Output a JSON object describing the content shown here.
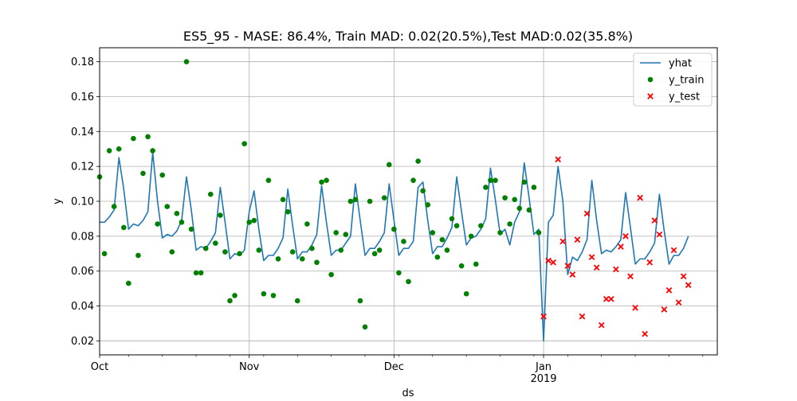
{
  "chart_data": {
    "type": "line",
    "title": "ES5_95 - MASE: 86.4%, Train MAD: 0.02(20.5%),Test MAD:0.02(35.8%)",
    "xlabel": "ds",
    "ylabel": "y",
    "xlim": [
      "2018-10-01",
      "2019-02-06"
    ],
    "ylim": [
      0.012,
      0.188
    ],
    "grid": true,
    "legend_position": "top-right",
    "x_ticks": [
      {
        "date": "2018-10-01",
        "label": "Oct",
        "sublabel": ""
      },
      {
        "date": "2018-11-01",
        "label": "Nov",
        "sublabel": ""
      },
      {
        "date": "2018-12-01",
        "label": "Dec",
        "sublabel": ""
      },
      {
        "date": "2019-01-01",
        "label": "Jan",
        "sublabel": "2019"
      }
    ],
    "y_ticks": [
      "0.02",
      "0.04",
      "0.06",
      "0.08",
      "0.10",
      "0.12",
      "0.14",
      "0.16",
      "0.18"
    ],
    "colors": {
      "yhat": "#1f77b4",
      "y_train": "#008000",
      "y_test": "#ff0000"
    },
    "series": [
      {
        "name": "yhat",
        "kind": "line",
        "points": [
          [
            "2018-10-01",
            0.088
          ],
          [
            "2018-10-02",
            0.088
          ],
          [
            "2018-10-03",
            0.091
          ],
          [
            "2018-10-04",
            0.095
          ],
          [
            "2018-10-05",
            0.125
          ],
          [
            "2018-10-06",
            0.107
          ],
          [
            "2018-10-07",
            0.084
          ],
          [
            "2018-10-08",
            0.087
          ],
          [
            "2018-10-09",
            0.086
          ],
          [
            "2018-10-10",
            0.089
          ],
          [
            "2018-10-11",
            0.094
          ],
          [
            "2018-10-12",
            0.128
          ],
          [
            "2018-10-13",
            0.1
          ],
          [
            "2018-10-14",
            0.079
          ],
          [
            "2018-10-15",
            0.081
          ],
          [
            "2018-10-16",
            0.08
          ],
          [
            "2018-10-17",
            0.083
          ],
          [
            "2018-10-18",
            0.089
          ],
          [
            "2018-10-19",
            0.114
          ],
          [
            "2018-10-20",
            0.095
          ],
          [
            "2018-10-21",
            0.072
          ],
          [
            "2018-10-22",
            0.074
          ],
          [
            "2018-10-23",
            0.073
          ],
          [
            "2018-10-24",
            0.077
          ],
          [
            "2018-10-25",
            0.082
          ],
          [
            "2018-10-26",
            0.108
          ],
          [
            "2018-10-27",
            0.088
          ],
          [
            "2018-10-28",
            0.067
          ],
          [
            "2018-10-29",
            0.07
          ],
          [
            "2018-10-30",
            0.069
          ],
          [
            "2018-10-31",
            0.072
          ],
          [
            "2018-11-01",
            0.094
          ],
          [
            "2018-11-02",
            0.106
          ],
          [
            "2018-11-03",
            0.084
          ],
          [
            "2018-11-04",
            0.066
          ],
          [
            "2018-11-05",
            0.069
          ],
          [
            "2018-11-06",
            0.069
          ],
          [
            "2018-11-07",
            0.073
          ],
          [
            "2018-11-08",
            0.079
          ],
          [
            "2018-11-09",
            0.107
          ],
          [
            "2018-11-10",
            0.086
          ],
          [
            "2018-11-11",
            0.067
          ],
          [
            "2018-11-12",
            0.071
          ],
          [
            "2018-11-13",
            0.071
          ],
          [
            "2018-11-14",
            0.075
          ],
          [
            "2018-11-15",
            0.081
          ],
          [
            "2018-11-16",
            0.109
          ],
          [
            "2018-11-17",
            0.088
          ],
          [
            "2018-11-18",
            0.069
          ],
          [
            "2018-11-19",
            0.072
          ],
          [
            "2018-11-20",
            0.072
          ],
          [
            "2018-11-21",
            0.076
          ],
          [
            "2018-11-22",
            0.08
          ],
          [
            "2018-11-23",
            0.11
          ],
          [
            "2018-11-24",
            0.089
          ],
          [
            "2018-11-25",
            0.069
          ],
          [
            "2018-11-26",
            0.073
          ],
          [
            "2018-11-27",
            0.073
          ],
          [
            "2018-11-28",
            0.077
          ],
          [
            "2018-11-29",
            0.082
          ],
          [
            "2018-11-30",
            0.11
          ],
          [
            "2018-12-01",
            0.089
          ],
          [
            "2018-12-02",
            0.069
          ],
          [
            "2018-12-03",
            0.073
          ],
          [
            "2018-12-04",
            0.073
          ],
          [
            "2018-12-05",
            0.077
          ],
          [
            "2018-12-06",
            0.108
          ],
          [
            "2018-12-07",
            0.111
          ],
          [
            "2018-12-08",
            0.089
          ],
          [
            "2018-12-09",
            0.07
          ],
          [
            "2018-12-10",
            0.074
          ],
          [
            "2018-12-11",
            0.074
          ],
          [
            "2018-12-12",
            0.079
          ],
          [
            "2018-12-13",
            0.085
          ],
          [
            "2018-12-14",
            0.114
          ],
          [
            "2018-12-15",
            0.094
          ],
          [
            "2018-12-16",
            0.075
          ],
          [
            "2018-12-17",
            0.079
          ],
          [
            "2018-12-18",
            0.08
          ],
          [
            "2018-12-19",
            0.084
          ],
          [
            "2018-12-20",
            0.09
          ],
          [
            "2018-12-21",
            0.119
          ],
          [
            "2018-12-22",
            0.101
          ],
          [
            "2018-12-23",
            0.081
          ],
          [
            "2018-12-24",
            0.084
          ],
          [
            "2018-12-25",
            0.075
          ],
          [
            "2018-12-26",
            0.088
          ],
          [
            "2018-12-27",
            0.094
          ],
          [
            "2018-12-28",
            0.122
          ],
          [
            "2018-12-29",
            0.102
          ],
          [
            "2018-12-30",
            0.081
          ],
          [
            "2018-12-31",
            0.084
          ],
          [
            "2019-01-01",
            0.02
          ],
          [
            "2019-01-02",
            0.088
          ],
          [
            "2019-01-03",
            0.092
          ],
          [
            "2019-01-04",
            0.12
          ],
          [
            "2019-01-05",
            0.1
          ],
          [
            "2019-01-06",
            0.058
          ],
          [
            "2019-01-07",
            0.068
          ],
          [
            "2019-01-08",
            0.066
          ],
          [
            "2019-01-09",
            0.071
          ],
          [
            "2019-01-10",
            0.078
          ],
          [
            "2019-01-11",
            0.112
          ],
          [
            "2019-01-12",
            0.089
          ],
          [
            "2019-01-13",
            0.07
          ],
          [
            "2019-01-14",
            0.072
          ],
          [
            "2019-01-15",
            0.071
          ],
          [
            "2019-01-16",
            0.074
          ],
          [
            "2019-01-17",
            0.078
          ],
          [
            "2019-01-18",
            0.105
          ],
          [
            "2019-01-19",
            0.085
          ],
          [
            "2019-01-20",
            0.064
          ],
          [
            "2019-01-21",
            0.067
          ],
          [
            "2019-01-22",
            0.067
          ],
          [
            "2019-01-23",
            0.071
          ],
          [
            "2019-01-24",
            0.076
          ],
          [
            "2019-01-25",
            0.104
          ],
          [
            "2019-01-26",
            0.083
          ],
          [
            "2019-01-27",
            0.064
          ],
          [
            "2019-01-28",
            0.069
          ],
          [
            "2019-01-29",
            0.069
          ],
          [
            "2019-01-30",
            0.073
          ],
          [
            "2019-01-31",
            0.08
          ]
        ]
      },
      {
        "name": "y_train",
        "kind": "scatter",
        "marker": "circle",
        "points": [
          [
            "2018-10-01",
            0.114
          ],
          [
            "2018-10-02",
            0.07
          ],
          [
            "2018-10-03",
            0.129
          ],
          [
            "2018-10-04",
            0.097
          ],
          [
            "2018-10-05",
            0.13
          ],
          [
            "2018-10-06",
            0.085
          ],
          [
            "2018-10-07",
            0.053
          ],
          [
            "2018-10-08",
            0.136
          ],
          [
            "2018-10-09",
            0.069
          ],
          [
            "2018-10-10",
            0.116
          ],
          [
            "2018-10-11",
            0.137
          ],
          [
            "2018-10-12",
            0.129
          ],
          [
            "2018-10-13",
            0.087
          ],
          [
            "2018-10-14",
            0.115
          ],
          [
            "2018-10-15",
            0.097
          ],
          [
            "2018-10-16",
            0.071
          ],
          [
            "2018-10-17",
            0.093
          ],
          [
            "2018-10-18",
            0.088
          ],
          [
            "2018-10-19",
            0.18
          ],
          [
            "2018-10-20",
            0.084
          ],
          [
            "2018-10-21",
            0.059
          ],
          [
            "2018-10-22",
            0.059
          ],
          [
            "2018-10-23",
            0.073
          ],
          [
            "2018-10-24",
            0.104
          ],
          [
            "2018-10-25",
            0.076
          ],
          [
            "2018-10-26",
            0.092
          ],
          [
            "2018-10-27",
            0.071
          ],
          [
            "2018-10-28",
            0.043
          ],
          [
            "2018-10-29",
            0.046
          ],
          [
            "2018-10-30",
            0.07
          ],
          [
            "2018-10-31",
            0.133
          ],
          [
            "2018-11-01",
            0.088
          ],
          [
            "2018-11-02",
            0.089
          ],
          [
            "2018-11-03",
            0.072
          ],
          [
            "2018-11-04",
            0.047
          ],
          [
            "2018-11-05",
            0.112
          ],
          [
            "2018-11-06",
            0.046
          ],
          [
            "2018-11-07",
            0.067
          ],
          [
            "2018-11-08",
            0.101
          ],
          [
            "2018-11-09",
            0.094
          ],
          [
            "2018-11-10",
            0.071
          ],
          [
            "2018-11-11",
            0.043
          ],
          [
            "2018-11-12",
            0.067
          ],
          [
            "2018-11-13",
            0.087
          ],
          [
            "2018-11-14",
            0.073
          ],
          [
            "2018-11-15",
            0.065
          ],
          [
            "2018-11-16",
            0.111
          ],
          [
            "2018-11-17",
            0.112
          ],
          [
            "2018-11-18",
            0.058
          ],
          [
            "2018-11-19",
            0.082
          ],
          [
            "2018-11-20",
            0.072
          ],
          [
            "2018-11-21",
            0.081
          ],
          [
            "2018-11-22",
            0.1
          ],
          [
            "2018-11-23",
            0.101
          ],
          [
            "2018-11-24",
            0.043
          ],
          [
            "2018-11-25",
            0.028
          ],
          [
            "2018-11-26",
            0.1
          ],
          [
            "2018-11-27",
            0.07
          ],
          [
            "2018-11-28",
            0.072
          ],
          [
            "2018-11-29",
            0.102
          ],
          [
            "2018-11-30",
            0.121
          ],
          [
            "2018-12-01",
            0.084
          ],
          [
            "2018-12-02",
            0.059
          ],
          [
            "2018-12-03",
            0.077
          ],
          [
            "2018-12-04",
            0.054
          ],
          [
            "2018-12-05",
            0.112
          ],
          [
            "2018-12-06",
            0.123
          ],
          [
            "2018-12-07",
            0.106
          ],
          [
            "2018-12-08",
            0.098
          ],
          [
            "2018-12-09",
            0.082
          ],
          [
            "2018-12-10",
            0.068
          ],
          [
            "2018-12-11",
            0.078
          ],
          [
            "2018-12-12",
            0.072
          ],
          [
            "2018-12-13",
            0.09
          ],
          [
            "2018-12-14",
            0.086
          ],
          [
            "2018-12-15",
            0.063
          ],
          [
            "2018-12-16",
            0.047
          ],
          [
            "2018-12-17",
            0.08
          ],
          [
            "2018-12-18",
            0.064
          ],
          [
            "2018-12-19",
            0.086
          ],
          [
            "2018-12-20",
            0.108
          ],
          [
            "2018-12-21",
            0.112
          ],
          [
            "2018-12-22",
            0.112
          ],
          [
            "2018-12-23",
            0.082
          ],
          [
            "2018-12-24",
            0.102
          ],
          [
            "2018-12-25",
            0.087
          ],
          [
            "2018-12-26",
            0.101
          ],
          [
            "2018-12-27",
            0.096
          ],
          [
            "2018-12-28",
            0.111
          ],
          [
            "2018-12-29",
            0.095
          ],
          [
            "2018-12-30",
            0.108
          ],
          [
            "2018-12-31",
            0.082
          ]
        ]
      },
      {
        "name": "y_test",
        "kind": "scatter",
        "marker": "x",
        "points": [
          [
            "2019-01-01",
            0.034
          ],
          [
            "2019-01-02",
            0.066
          ],
          [
            "2019-01-03",
            0.065
          ],
          [
            "2019-01-04",
            0.124
          ],
          [
            "2019-01-05",
            0.077
          ],
          [
            "2019-01-06",
            0.063
          ],
          [
            "2019-01-07",
            0.058
          ],
          [
            "2019-01-08",
            0.078
          ],
          [
            "2019-01-09",
            0.034
          ],
          [
            "2019-01-10",
            0.093
          ],
          [
            "2019-01-11",
            0.068
          ],
          [
            "2019-01-12",
            0.062
          ],
          [
            "2019-01-13",
            0.029
          ],
          [
            "2019-01-14",
            0.044
          ],
          [
            "2019-01-15",
            0.044
          ],
          [
            "2019-01-16",
            0.061
          ],
          [
            "2019-01-17",
            0.074
          ],
          [
            "2019-01-18",
            0.08
          ],
          [
            "2019-01-19",
            0.057
          ],
          [
            "2019-01-20",
            0.039
          ],
          [
            "2019-01-21",
            0.102
          ],
          [
            "2019-01-22",
            0.024
          ],
          [
            "2019-01-23",
            0.065
          ],
          [
            "2019-01-24",
            0.089
          ],
          [
            "2019-01-25",
            0.081
          ],
          [
            "2019-01-26",
            0.038
          ],
          [
            "2019-01-27",
            0.049
          ],
          [
            "2019-01-28",
            0.072
          ],
          [
            "2019-01-29",
            0.042
          ],
          [
            "2019-01-30",
            0.057
          ],
          [
            "2019-01-31",
            0.052
          ]
        ]
      }
    ]
  }
}
